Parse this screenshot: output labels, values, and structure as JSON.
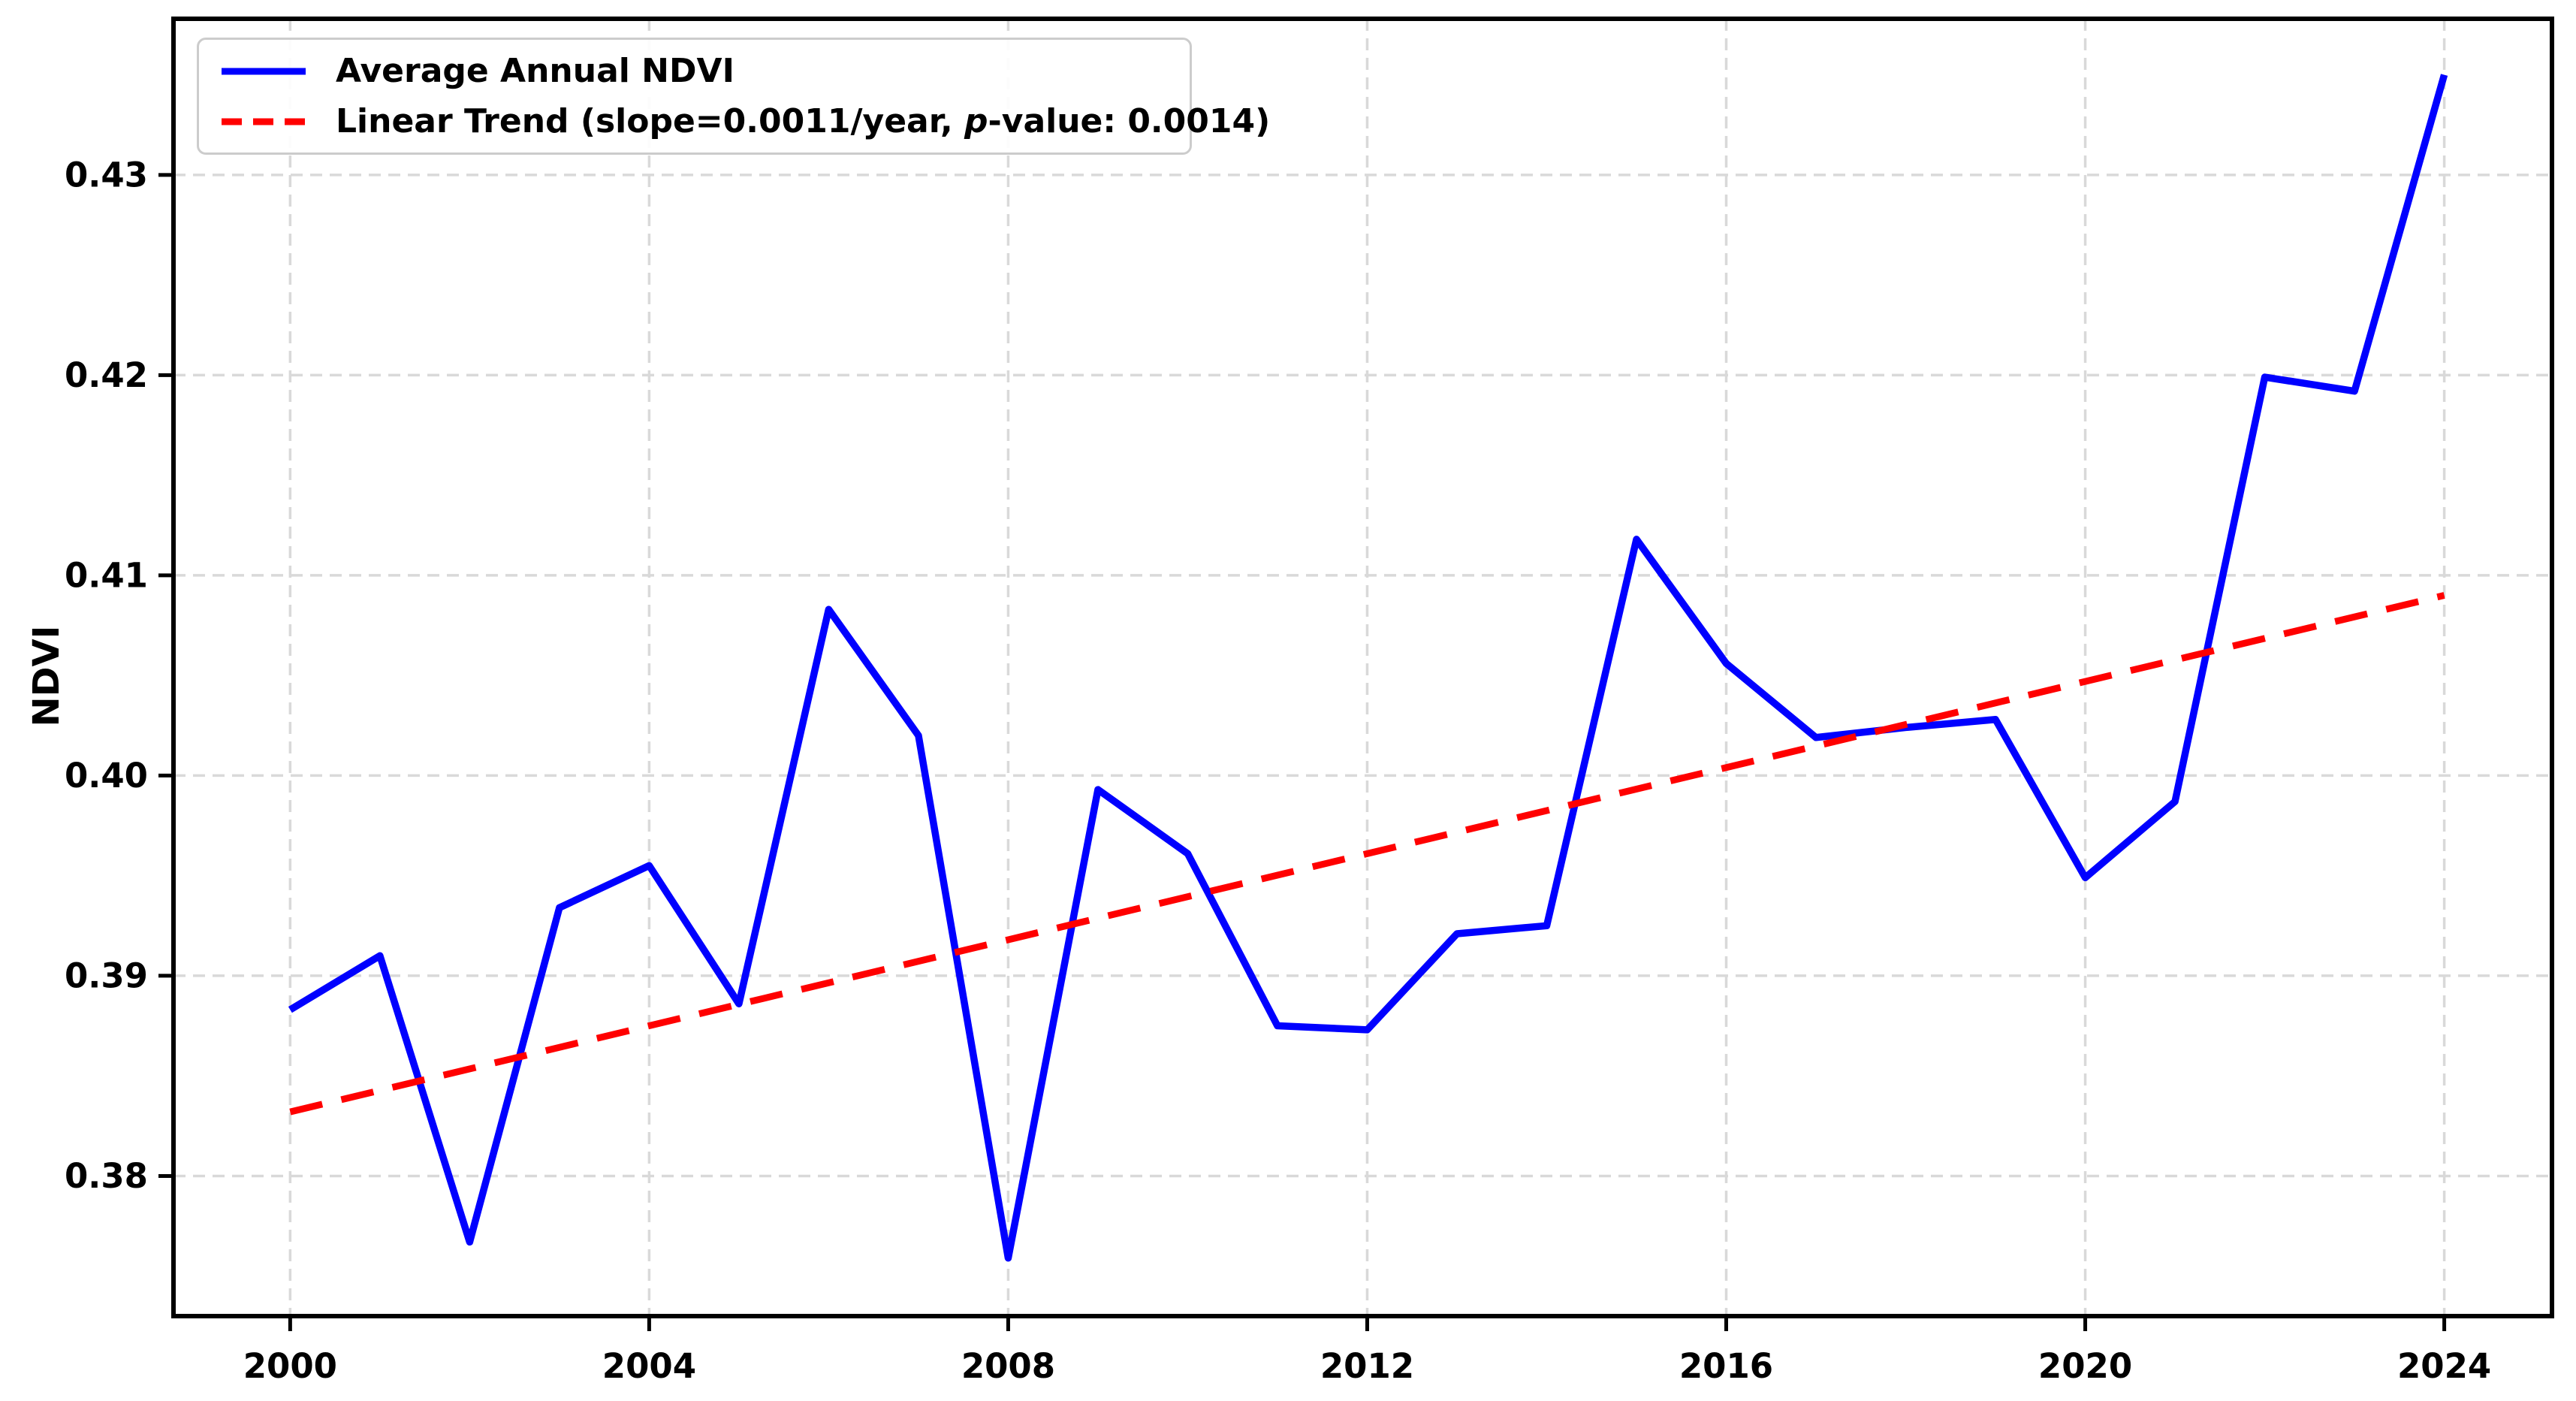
{
  "colors": {
    "ndvi_line": "#0000ff",
    "trend_line": "#ff0000",
    "grid": "#d9d9d9",
    "axis": "#000000",
    "legend_border": "#cccccc"
  },
  "legend": {
    "ndvi_label": "Average Annual NDVI",
    "trend_label_prefix": "Linear Trend (slope=0.0011/year, ",
    "trend_label_p": "p",
    "trend_label_suffix": "-value: 0.0014)"
  },
  "chart_data": {
    "type": "line",
    "title": "",
    "xlabel": "",
    "ylabel": "NDVI",
    "grid": true,
    "grid_style": "dashed",
    "legend_position": "upper left",
    "xlim": [
      1998.7,
      2025.2
    ],
    "ylim": [
      0.373,
      0.4378
    ],
    "x_ticks": [
      {
        "value": 2000,
        "label": "2000"
      },
      {
        "value": 2004,
        "label": "2004"
      },
      {
        "value": 2008,
        "label": "2008"
      },
      {
        "value": 2012,
        "label": "2012"
      },
      {
        "value": 2016,
        "label": "2016"
      },
      {
        "value": 2020,
        "label": "2020"
      },
      {
        "value": 2024,
        "label": "2024"
      }
    ],
    "y_ticks": [
      {
        "value": 0.38,
        "label": "0.38"
      },
      {
        "value": 0.39,
        "label": "0.39"
      },
      {
        "value": 0.4,
        "label": "0.40"
      },
      {
        "value": 0.41,
        "label": "0.41"
      },
      {
        "value": 0.42,
        "label": "0.42"
      },
      {
        "value": 0.43,
        "label": "0.43"
      }
    ],
    "x": [
      2000,
      2001,
      2002,
      2003,
      2004,
      2005,
      2006,
      2007,
      2008,
      2009,
      2010,
      2011,
      2012,
      2013,
      2014,
      2015,
      2016,
      2017,
      2018,
      2019,
      2020,
      2021,
      2022,
      2023,
      2024
    ],
    "series": [
      {
        "name": "Average Annual NDVI",
        "color": "#0000ff",
        "line_style": "solid",
        "values": [
          0.3883,
          0.391,
          0.3767,
          0.3934,
          0.3955,
          0.3886,
          0.4083,
          0.402,
          0.3759,
          0.3993,
          0.3961,
          0.3875,
          0.3873,
          0.3921,
          0.3925,
          0.4118,
          0.4056,
          0.4019,
          0.4024,
          0.4028,
          0.3949,
          0.3987,
          0.4199,
          0.4192,
          0.435
        ]
      },
      {
        "name": "Linear Trend (slope=0.0011/year, p-value: 0.0014)",
        "color": "#ff0000",
        "line_style": "dashed",
        "slope_per_year": 0.0011,
        "p_value": 0.0014,
        "x": [
          2000,
          2024
        ],
        "values": [
          0.3832,
          0.409
        ]
      }
    ]
  }
}
